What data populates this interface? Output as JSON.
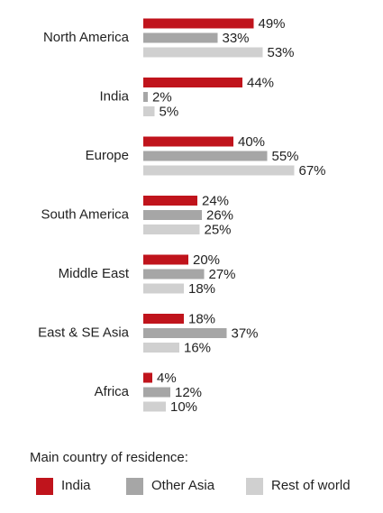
{
  "chart_data": {
    "type": "bar",
    "orientation": "horizontal",
    "categories": [
      "North America",
      "India",
      "Europe",
      "South America",
      "Middle East",
      "East & SE Asia",
      "Africa"
    ],
    "legend_title": "Main country of residence:",
    "series": [
      {
        "name": "India",
        "color": "#c0141c",
        "values": [
          49,
          44,
          40,
          24,
          20,
          18,
          4
        ],
        "value_labels": [
          "49%",
          "44%",
          "40%",
          "24%",
          "20%",
          "18%",
          "4%"
        ]
      },
      {
        "name": "Other Asia",
        "color": "#a6a6a6",
        "values": [
          33,
          2,
          55,
          26,
          27,
          37,
          12
        ],
        "value_labels": [
          "33%",
          "2%",
          "55%",
          "26%",
          "27%",
          "37%",
          "12%"
        ]
      },
      {
        "name": "Rest of world",
        "color": "#d0d0d0",
        "values": [
          53,
          5,
          67,
          25,
          18,
          16,
          10
        ],
        "value_labels": [
          "53%",
          "5%",
          "67%",
          "25%",
          "18%",
          "16%",
          "10%"
        ]
      }
    ]
  }
}
